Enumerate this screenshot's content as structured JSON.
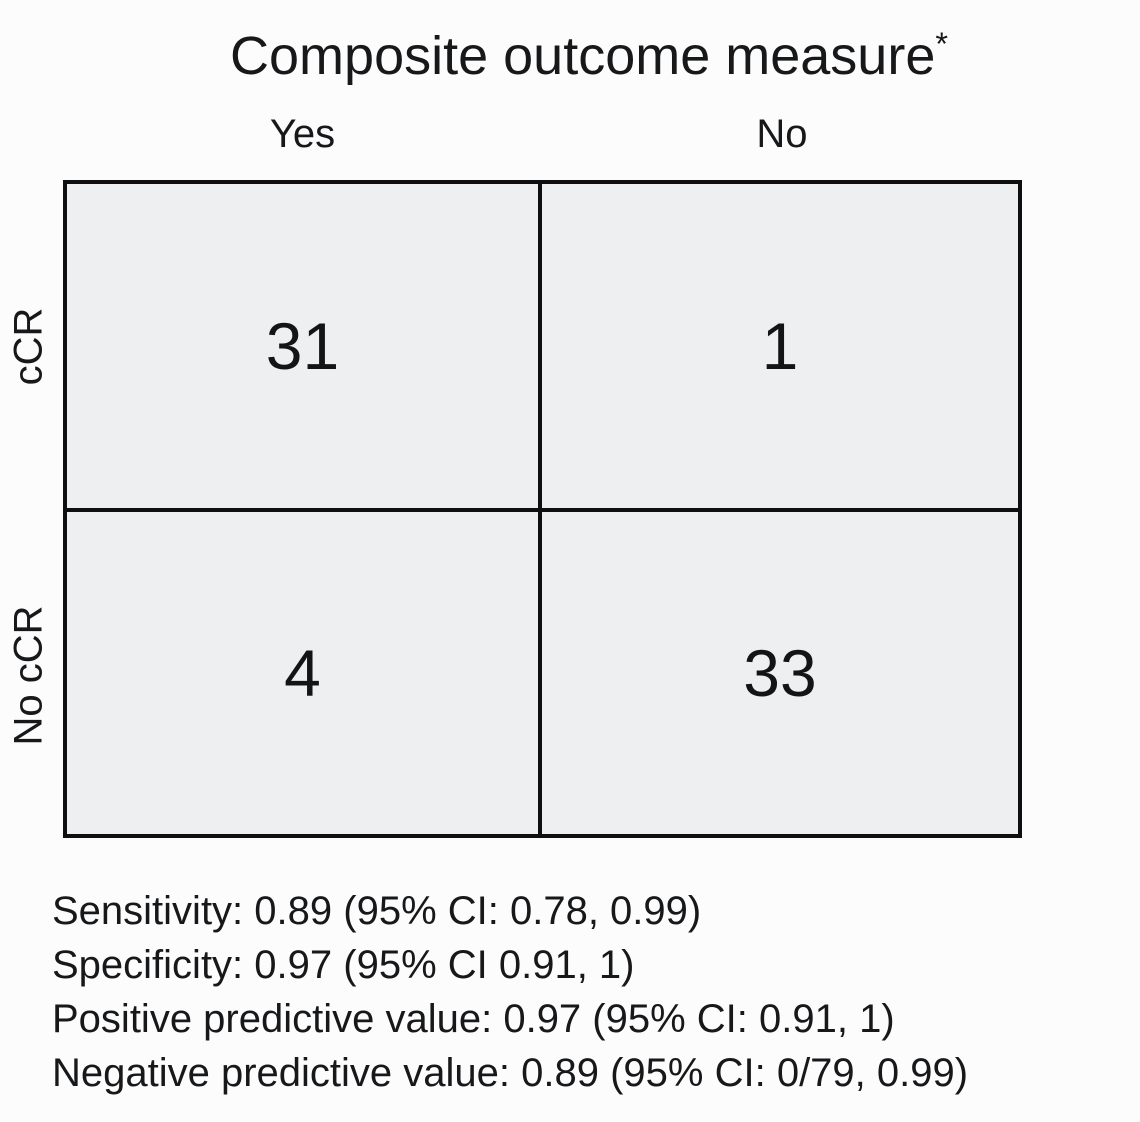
{
  "figure": {
    "title": "Composite outcome measure",
    "title_superscript": "*",
    "columns": [
      {
        "label": "Yes"
      },
      {
        "label": "No"
      }
    ],
    "rows": [
      {
        "label": "cCR",
        "cells": [
          "31",
          "1"
        ]
      },
      {
        "label": "No cCR",
        "cells": [
          "4",
          "33"
        ]
      }
    ],
    "stats_lines": [
      "Sensitivity: 0.89 (95% CI: 0.78, 0.99)",
      "Specificity: 0.97 (95% CI 0.91, 1)",
      "Positive predictive value: 0.97 (95% CI: 0.91, 1)",
      "Negative predictive value: 0.89 (95% CI: 0/79, 0.99)"
    ],
    "colors": {
      "background": "#fcfcfd",
      "cell_fill": "#edeff0",
      "border": "#0f0f10",
      "text": "#17181a"
    }
  },
  "chart_data": {
    "type": "table",
    "title": "Composite outcome measure*",
    "columns": [
      "Yes",
      "No"
    ],
    "rows": [
      "cCR",
      "No cCR"
    ],
    "values": [
      [
        31,
        1
      ],
      [
        4,
        33
      ]
    ],
    "annotations": [
      "Sensitivity: 0.89 (95% CI: 0.78, 0.99)",
      "Specificity: 0.97 (95% CI 0.91, 1)",
      "Positive predictive value: 0.97 (95% CI: 0.91, 1)",
      "Negative predictive value: 0.89 (95% CI: 0/79, 0.99)"
    ],
    "layout_hints": {
      "row_labels_rotated": true,
      "cell_fill": "#edeff0",
      "grid_border": "#0f0f10"
    }
  }
}
